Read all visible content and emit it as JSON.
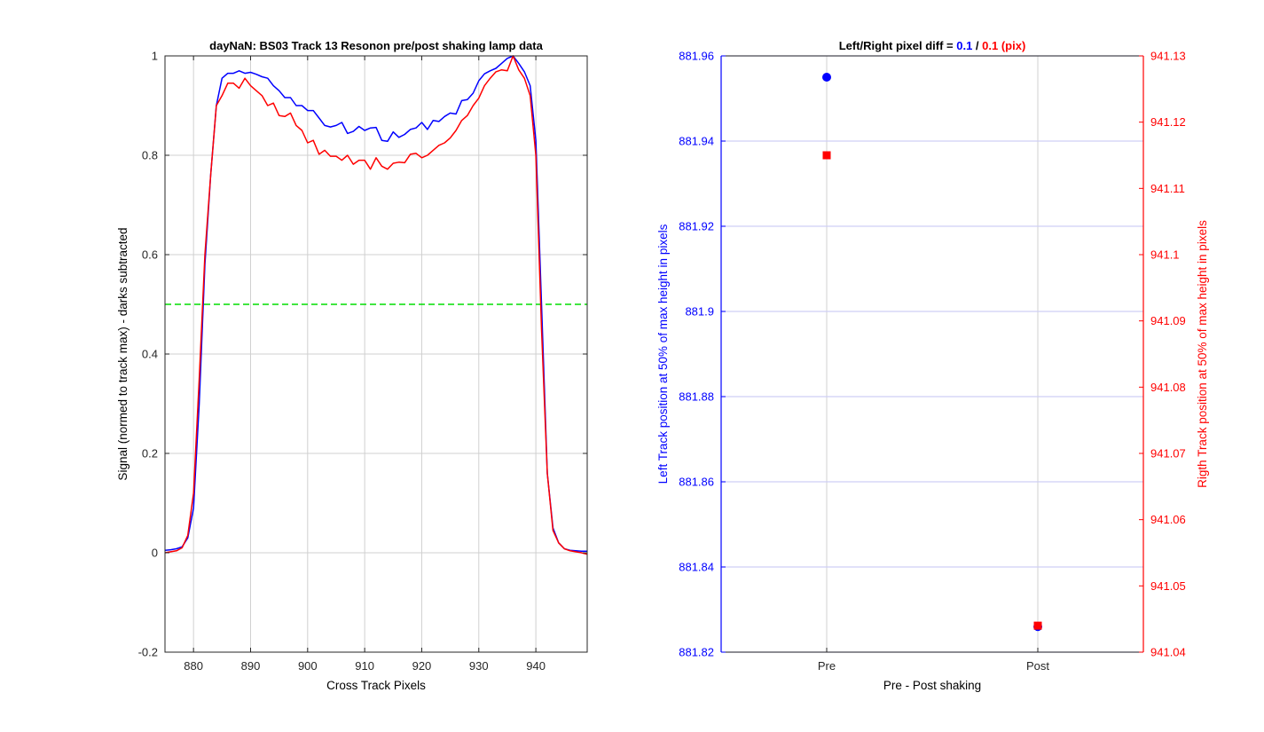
{
  "colors": {
    "pre": "#0000ff",
    "post": "#ff0000",
    "threshold": "#00dd00",
    "grid": "#d0d0d0",
    "blue_grid": "#cfcff5",
    "axis": "#262626"
  },
  "chart_data": [
    {
      "type": "line",
      "title": "dayNaN: BS03  Track 13 Resonon pre/post shaking lamp data",
      "xlabel": "Cross Track Pixels",
      "ylabel": "Signal (normed to track max) - darks subtracted",
      "xlim": [
        875,
        949
      ],
      "ylim": [
        -0.2,
        1
      ],
      "grid": true,
      "x_ticks": [
        "880",
        "890",
        "900",
        "910",
        "920",
        "930",
        "940"
      ],
      "y_ticks": [
        "-0.2",
        "0",
        "0.2",
        "0.4",
        "0.6",
        "0.8",
        "1"
      ],
      "threshold": 0.5,
      "x": [
        875,
        876,
        877,
        878,
        879,
        880,
        881,
        882,
        883,
        884,
        885,
        886,
        887,
        888,
        889,
        890,
        891,
        892,
        893,
        894,
        895,
        896,
        897,
        898,
        899,
        900,
        901,
        902,
        903,
        904,
        905,
        906,
        907,
        908,
        909,
        910,
        911,
        912,
        913,
        914,
        915,
        916,
        917,
        918,
        919,
        920,
        921,
        922,
        923,
        924,
        925,
        926,
        927,
        928,
        929,
        930,
        931,
        932,
        933,
        934,
        935,
        936,
        937,
        938,
        939,
        940,
        941,
        942,
        943,
        944,
        945,
        946,
        947,
        948,
        949
      ],
      "series": [
        {
          "name": "pre",
          "values": [
            0.005,
            0.006,
            0.008,
            0.012,
            0.03,
            0.09,
            0.3,
            0.58,
            0.76,
            0.9,
            0.955,
            0.965,
            0.965,
            0.97,
            0.965,
            0.967,
            0.963,
            0.958,
            0.955,
            0.94,
            0.93,
            0.916,
            0.916,
            0.9,
            0.9,
            0.89,
            0.89,
            0.875,
            0.86,
            0.857,
            0.86,
            0.866,
            0.844,
            0.848,
            0.858,
            0.85,
            0.855,
            0.856,
            0.83,
            0.828,
            0.847,
            0.836,
            0.842,
            0.852,
            0.855,
            0.866,
            0.852,
            0.87,
            0.868,
            0.878,
            0.885,
            0.883,
            0.91,
            0.912,
            0.925,
            0.95,
            0.964,
            0.97,
            0.975,
            0.985,
            0.995,
            1.0,
            0.985,
            0.968,
            0.94,
            0.83,
            0.5,
            0.16,
            0.05,
            0.02,
            0.008,
            0.005,
            0.004,
            0.003,
            0.003
          ]
        },
        {
          "name": "post",
          "values": [
            0.0,
            0.002,
            0.004,
            0.01,
            0.035,
            0.12,
            0.35,
            0.6,
            0.76,
            0.9,
            0.92,
            0.945,
            0.945,
            0.935,
            0.955,
            0.94,
            0.93,
            0.92,
            0.9,
            0.905,
            0.88,
            0.878,
            0.885,
            0.86,
            0.85,
            0.825,
            0.83,
            0.802,
            0.81,
            0.798,
            0.798,
            0.79,
            0.8,
            0.782,
            0.79,
            0.79,
            0.772,
            0.795,
            0.778,
            0.772,
            0.784,
            0.786,
            0.785,
            0.802,
            0.804,
            0.795,
            0.8,
            0.81,
            0.82,
            0.825,
            0.835,
            0.85,
            0.87,
            0.88,
            0.9,
            0.915,
            0.94,
            0.955,
            0.968,
            0.972,
            0.97,
            1.0,
            0.972,
            0.955,
            0.92,
            0.8,
            0.45,
            0.16,
            0.045,
            0.02,
            0.008,
            0.004,
            0.002,
            0.0,
            -0.003
          ]
        }
      ]
    },
    {
      "type": "scatter",
      "title_prefix": "Left/Right pixel diff = ",
      "title_left": "0.1",
      "title_sep": " / ",
      "title_right": "0.1 (pix)",
      "xlabel": "Pre - Post shaking",
      "ylabel_left": "Left Track position at 50% of max height in pixels",
      "ylabel_right": "Rigth Track position at 50% of max height in pixels",
      "categories": [
        "Pre",
        "Post"
      ],
      "ylim_left": [
        881.82,
        881.96
      ],
      "ylim_right": [
        941.04,
        941.13
      ],
      "y_ticks_left": [
        "881.82",
        "881.84",
        "881.86",
        "881.88",
        "881.9",
        "881.92",
        "881.94",
        "881.96"
      ],
      "y_ticks_right": [
        "941.04",
        "941.05",
        "941.06",
        "941.07",
        "941.08",
        "941.09",
        "941.1",
        "941.11",
        "941.12",
        "941.13"
      ],
      "grid": true,
      "series": [
        {
          "name": "left",
          "axis": "left",
          "marker": "circle",
          "values": [
            881.955,
            881.826
          ]
        },
        {
          "name": "right",
          "axis": "right",
          "marker": "square",
          "values": [
            941.115,
            941.044
          ]
        }
      ]
    }
  ]
}
